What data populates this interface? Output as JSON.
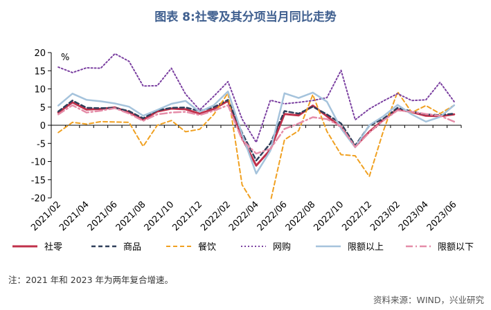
{
  "title": "图表 8:社零及其分项当月同比走势",
  "footnote": "注：2021 年和 2023 年为两年复合增速。",
  "source": "资料来源：WIND，兴业研究",
  "chart_data": {
    "type": "line",
    "unit_label": "%",
    "ylim": [
      -20,
      20
    ],
    "yticks": [
      20,
      15,
      10,
      5,
      0,
      -5,
      -10,
      -15,
      -20
    ],
    "x": [
      "2021/02",
      "2021/03",
      "2021/04",
      "2021/05",
      "2021/06",
      "2021/07",
      "2021/08",
      "2021/09",
      "2021/10",
      "2021/11",
      "2021/12",
      "2022/01",
      "2022/02",
      "2022/03",
      "2022/04",
      "2022/05",
      "2022/06",
      "2022/07",
      "2022/08",
      "2022/09",
      "2022/10",
      "2022/11",
      "2022/12",
      "2023/01",
      "2023/02",
      "2023/03",
      "2023/04",
      "2023/05",
      "2023/06"
    ],
    "xtick_labels": [
      "2021/02",
      "2021/04",
      "2021/06",
      "2021/08",
      "2021/10",
      "2021/12",
      "2022/02",
      "2022/04",
      "2022/06",
      "2022/08",
      "2022/10",
      "2022/12",
      "2023/02",
      "2023/04",
      "2023/06"
    ],
    "grid": false,
    "legend_position": "bottom",
    "series": [
      {
        "name": "社零",
        "color": "#c0304a",
        "dash": "solid",
        "width": 3,
        "values": [
          3.5,
          6.3,
          4.3,
          4.5,
          4.9,
          3.6,
          1.5,
          3.8,
          4.6,
          4.4,
          3.2,
          4.5,
          6.7,
          -3.5,
          -11.1,
          -6.7,
          3.1,
          2.7,
          5.4,
          2.5,
          -0.5,
          -5.9,
          -1.8,
          1.5,
          4.4,
          3.6,
          2.6,
          2.5,
          3.0
        ]
      },
      {
        "name": "商品",
        "color": "#2f3f5a",
        "dash": "6,4",
        "width": 2.5,
        "values": [
          3.8,
          6.8,
          4.8,
          4.7,
          4.8,
          3.9,
          1.9,
          4.1,
          4.8,
          4.9,
          3.9,
          5.0,
          7.0,
          -2.1,
          -9.7,
          -5.0,
          3.9,
          3.2,
          5.1,
          3.0,
          0.5,
          -5.6,
          -0.1,
          1.8,
          4.8,
          3.8,
          3.0,
          2.8,
          3.2
        ]
      },
      {
        "name": "餐饮",
        "color": "#f0a020",
        "dash": "6,4",
        "width": 2,
        "values": [
          -2.0,
          0.8,
          0.3,
          1.0,
          0.9,
          0.8,
          -5.8,
          0.0,
          1.3,
          -1.8,
          -1.1,
          3.0,
          8.9,
          -16.4,
          -22.7,
          -21.1,
          -4.0,
          -1.5,
          8.4,
          -1.7,
          -8.1,
          -8.4,
          -14.1,
          -1.5,
          9.2,
          3.5,
          5.4,
          3.2,
          5.5
        ]
      },
      {
        "name": "网购",
        "color": "#7a3fa0",
        "dash": "2,3",
        "width": 2,
        "values": [
          16.0,
          14.5,
          15.8,
          15.7,
          19.7,
          17.6,
          10.8,
          10.9,
          15.7,
          8.6,
          4.2,
          8.0,
          12.0,
          1.7,
          -4.7,
          6.9,
          5.9,
          6.3,
          6.8,
          7.6,
          15.1,
          1.5,
          4.5,
          6.7,
          8.7,
          6.8,
          7.0,
          11.8,
          6.5
        ]
      },
      {
        "name": "限额以上",
        "color": "#a5c3dc",
        "dash": "solid",
        "width": 2.5,
        "values": [
          5.4,
          8.7,
          7.0,
          6.6,
          6.0,
          5.1,
          2.6,
          4.2,
          5.9,
          6.7,
          3.7,
          5.5,
          9.3,
          -2.5,
          -13.3,
          -7.0,
          8.8,
          7.5,
          9.0,
          6.5,
          -0.9,
          -6.1,
          0.0,
          2.5,
          5.6,
          3.0,
          1.0,
          2.3,
          5.5
        ]
      },
      {
        "name": "限额以下",
        "color": "#e58ca8",
        "dash": "10,4,2,4",
        "width": 2.5,
        "values": [
          3.0,
          5.5,
          3.5,
          4.0,
          4.7,
          3.2,
          1.2,
          3.0,
          3.5,
          3.7,
          2.8,
          4.0,
          5.5,
          -4.0,
          -7.8,
          -6.5,
          -1.0,
          0.5,
          2.2,
          1.7,
          -0.3,
          -6.0,
          -2.0,
          1.3,
          4.1,
          3.7,
          3.1,
          2.6,
          1.0
        ]
      }
    ]
  }
}
